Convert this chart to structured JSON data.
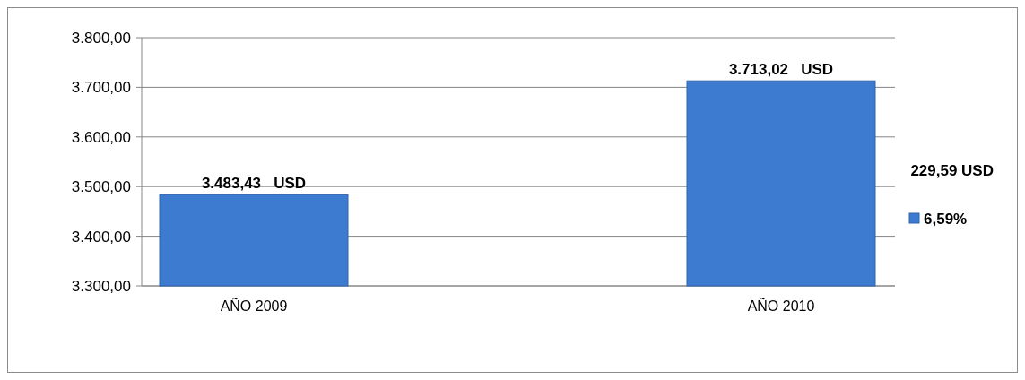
{
  "chart_data": {
    "type": "bar",
    "categories": [
      "AÑO 2009",
      "AÑO 2010"
    ],
    "series": [
      {
        "name": "6,59%",
        "color": "#3d7bd0",
        "values": [
          3483.43,
          3713.02
        ],
        "value_labels": [
          "3.483,43   USD",
          "3.713,02   USD"
        ]
      }
    ],
    "ylim": [
      3300,
      3800
    ],
    "yticks": [
      {
        "value": 3300,
        "label": "3.300,00"
      },
      {
        "value": 3400,
        "label": "3.400,00"
      },
      {
        "value": 3500,
        "label": "3.500,00"
      },
      {
        "value": 3600,
        "label": "3.600,00"
      },
      {
        "value": 3700,
        "label": "3.700,00"
      },
      {
        "value": 3800,
        "label": "3.800,00"
      }
    ],
    "grid": "y",
    "legend": "right",
    "annotations": [
      "229,59 USD"
    ]
  }
}
